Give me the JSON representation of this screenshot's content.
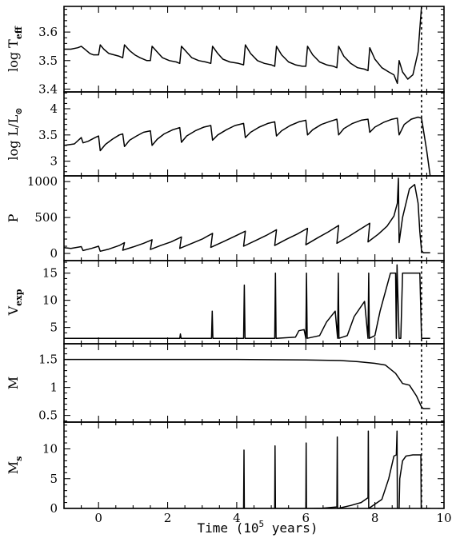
{
  "xaxis": {
    "label_prefix": "Time (10",
    "label_exp": "5",
    "label_suffix": " years)",
    "xlim": [
      -1.0,
      10.0
    ],
    "ticks": [
      0,
      2,
      4,
      6,
      8,
      10
    ],
    "tick_labels": [
      "0",
      "2",
      "4",
      "6",
      "8",
      "10"
    ]
  },
  "vertical_marker_x": 9.35,
  "chart_data": [
    {
      "id": "teff",
      "type": "line",
      "ylabel": {
        "text": "log T",
        "sub": "eff"
      },
      "ylim": [
        3.39,
        3.69
      ],
      "yticks": [
        3.4,
        3.5,
        3.6
      ],
      "ytick_labels": [
        "3.4",
        "3.5",
        "3.6"
      ],
      "x": [
        -1.0,
        -0.8,
        -0.6,
        -0.5,
        -0.45,
        -0.3,
        -0.25,
        -0.15,
        0.0,
        0.05,
        0.15,
        0.3,
        0.45,
        0.6,
        0.7,
        0.75,
        0.9,
        1.05,
        1.2,
        1.4,
        1.5,
        1.55,
        1.7,
        1.85,
        2.05,
        2.25,
        2.35,
        2.4,
        2.55,
        2.7,
        2.9,
        3.1,
        3.25,
        3.3,
        3.45,
        3.6,
        3.8,
        4.05,
        4.2,
        4.25,
        4.4,
        4.6,
        4.8,
        5.0,
        5.1,
        5.15,
        5.3,
        5.5,
        5.7,
        5.9,
        6.0,
        6.05,
        6.2,
        6.4,
        6.6,
        6.8,
        6.9,
        6.95,
        7.1,
        7.3,
        7.5,
        7.7,
        7.8,
        7.85,
        8.0,
        8.2,
        8.4,
        8.55,
        8.65,
        8.7,
        8.8,
        8.95,
        9.1,
        9.25,
        9.35
      ],
      "y": [
        3.54,
        3.54,
        3.545,
        3.55,
        3.545,
        3.53,
        3.525,
        3.52,
        3.52,
        3.555,
        3.54,
        3.525,
        3.52,
        3.515,
        3.51,
        3.555,
        3.535,
        3.52,
        3.51,
        3.5,
        3.5,
        3.55,
        3.53,
        3.51,
        3.5,
        3.495,
        3.49,
        3.55,
        3.53,
        3.51,
        3.5,
        3.495,
        3.49,
        3.55,
        3.525,
        3.505,
        3.495,
        3.49,
        3.485,
        3.555,
        3.525,
        3.5,
        3.49,
        3.485,
        3.48,
        3.55,
        3.52,
        3.495,
        3.485,
        3.48,
        3.48,
        3.55,
        3.52,
        3.495,
        3.485,
        3.48,
        3.475,
        3.55,
        3.515,
        3.49,
        3.475,
        3.47,
        3.465,
        3.545,
        3.505,
        3.475,
        3.46,
        3.45,
        3.42,
        3.5,
        3.46,
        3.435,
        3.45,
        3.53,
        3.69
      ]
    },
    {
      "id": "lum",
      "type": "line",
      "ylabel": {
        "text": "log L/L",
        "sub": "⊙"
      },
      "ylim": [
        2.72,
        4.32
      ],
      "yticks": [
        3.0,
        3.5,
        4.0
      ],
      "ytick_labels": [
        "3",
        "3.5",
        "4"
      ],
      "x": [
        -1.0,
        -0.7,
        -0.5,
        -0.45,
        -0.3,
        -0.1,
        0.0,
        0.05,
        0.2,
        0.4,
        0.6,
        0.7,
        0.75,
        0.9,
        1.1,
        1.3,
        1.5,
        1.55,
        1.7,
        1.9,
        2.15,
        2.35,
        2.4,
        2.55,
        2.8,
        3.05,
        3.25,
        3.3,
        3.45,
        3.7,
        3.95,
        4.2,
        4.25,
        4.4,
        4.65,
        4.9,
        5.1,
        5.15,
        5.3,
        5.55,
        5.8,
        6.0,
        6.05,
        6.2,
        6.45,
        6.7,
        6.9,
        6.95,
        7.1,
        7.35,
        7.6,
        7.8,
        7.85,
        8.0,
        8.25,
        8.5,
        8.65,
        8.7,
        8.85,
        9.05,
        9.25,
        9.35,
        9.5,
        9.6
      ],
      "y": [
        3.3,
        3.33,
        3.45,
        3.35,
        3.38,
        3.45,
        3.48,
        3.2,
        3.32,
        3.42,
        3.5,
        3.52,
        3.28,
        3.4,
        3.48,
        3.55,
        3.58,
        3.3,
        3.42,
        3.52,
        3.6,
        3.64,
        3.36,
        3.48,
        3.58,
        3.65,
        3.68,
        3.4,
        3.5,
        3.6,
        3.68,
        3.72,
        3.45,
        3.55,
        3.65,
        3.72,
        3.75,
        3.48,
        3.58,
        3.68,
        3.75,
        3.78,
        3.5,
        3.6,
        3.7,
        3.76,
        3.8,
        3.5,
        3.62,
        3.72,
        3.78,
        3.8,
        3.55,
        3.65,
        3.74,
        3.8,
        3.82,
        3.5,
        3.7,
        3.8,
        3.84,
        3.82,
        3.2,
        2.72
      ]
    },
    {
      "id": "period",
      "type": "line",
      "ylabel": {
        "text": "P",
        "sub": ""
      },
      "ylim": [
        -100,
        1080
      ],
      "yticks": [
        0,
        500,
        1000
      ],
      "ytick_labels": [
        "0",
        "500",
        "1000"
      ],
      "x": [
        -1.0,
        -0.8,
        -0.5,
        -0.45,
        -0.2,
        0.0,
        0.05,
        0.3,
        0.6,
        0.75,
        0.7,
        1.0,
        1.3,
        1.55,
        1.5,
        1.8,
        2.1,
        2.4,
        2.35,
        2.7,
        3.0,
        3.3,
        3.25,
        3.6,
        3.9,
        4.25,
        4.2,
        4.55,
        4.85,
        5.15,
        5.1,
        5.45,
        5.75,
        6.05,
        6.0,
        6.35,
        6.65,
        6.95,
        6.9,
        7.25,
        7.55,
        7.85,
        7.8,
        8.1,
        8.35,
        8.55,
        8.65,
        8.68,
        8.7,
        8.8,
        9.0,
        9.15,
        9.25,
        9.3,
        9.35,
        9.4,
        9.6
      ],
      "y": [
        80,
        70,
        95,
        40,
        70,
        100,
        30,
        60,
        110,
        150,
        45,
        90,
        140,
        190,
        55,
        110,
        160,
        230,
        70,
        140,
        200,
        280,
        85,
        160,
        230,
        310,
        100,
        180,
        250,
        330,
        110,
        200,
        270,
        350,
        120,
        220,
        300,
        390,
        140,
        240,
        330,
        420,
        160,
        270,
        380,
        520,
        700,
        1050,
        150,
        500,
        900,
        960,
        700,
        300,
        40,
        10,
        10
      ]
    },
    {
      "id": "vexp",
      "type": "line",
      "ylabel": {
        "text": "V",
        "sub": "exp"
      },
      "ylim": [
        2.0,
        17.3
      ],
      "yticks": [
        5,
        10,
        15
      ],
      "ytick_labels": [
        "5",
        "10",
        "15"
      ],
      "x": [
        -1.0,
        2.35,
        2.37,
        2.39,
        3.27,
        3.29,
        3.31,
        4.2,
        4.22,
        4.24,
        5.1,
        5.12,
        5.14,
        5.7,
        5.8,
        5.95,
        6.0,
        6.02,
        6.04,
        6.4,
        6.6,
        6.85,
        6.92,
        6.94,
        6.96,
        7.2,
        7.4,
        7.7,
        7.8,
        7.82,
        7.84,
        8.0,
        8.15,
        8.45,
        8.6,
        8.62,
        8.64,
        8.7,
        8.75,
        8.8,
        8.85,
        9.3,
        9.35,
        9.6
      ],
      "y": [
        3.0,
        3.0,
        3.8,
        3.0,
        3.0,
        8.0,
        3.0,
        3.0,
        12.8,
        3.0,
        3.0,
        15.0,
        3.0,
        3.2,
        4.4,
        4.6,
        3.0,
        15.0,
        3.0,
        3.5,
        6.0,
        8.0,
        3.0,
        15.0,
        3.0,
        3.5,
        7.0,
        9.8,
        3.0,
        15.0,
        3.0,
        3.5,
        8.0,
        15.0,
        15.0,
        3.0,
        16.5,
        3.0,
        3.0,
        15.0,
        15.0,
        15.0,
        3.0,
        3.0
      ]
    },
    {
      "id": "mass",
      "type": "line",
      "ylabel": {
        "text": "M",
        "sub": ""
      },
      "ylim": [
        0.38,
        1.78
      ],
      "yticks": [
        0.5,
        1.0,
        1.5
      ],
      "ytick_labels": [
        "0.5",
        "1",
        "1.5"
      ],
      "x": [
        -1.0,
        4.0,
        6.0,
        7.0,
        7.5,
        8.0,
        8.3,
        8.6,
        8.8,
        9.0,
        9.2,
        9.35,
        9.4,
        9.6
      ],
      "y": [
        1.5,
        1.5,
        1.49,
        1.48,
        1.46,
        1.43,
        1.4,
        1.25,
        1.07,
        1.04,
        0.85,
        0.65,
        0.62,
        0.62
      ]
    },
    {
      "id": "msh",
      "type": "line",
      "ylabel": {
        "text": "M",
        "sub": "s"
      },
      "ylim": [
        0.0,
        14.5
      ],
      "yticks": [
        0,
        5,
        10
      ],
      "ytick_labels": [
        "0",
        "5",
        "10"
      ],
      "x": [
        -1.0,
        4.2,
        4.21,
        4.22,
        5.1,
        5.11,
        5.12,
        6.0,
        6.01,
        6.02,
        6.5,
        6.8,
        6.9,
        6.91,
        6.92,
        7.3,
        7.6,
        7.8,
        7.81,
        7.82,
        8.2,
        8.4,
        8.55,
        8.62,
        8.64,
        8.65,
        8.7,
        8.72,
        8.8,
        8.9,
        9.1,
        9.3,
        9.33,
        9.34,
        9.6
      ],
      "y": [
        0.0,
        0.0,
        9.8,
        0.0,
        0.0,
        10.5,
        0.0,
        0.0,
        11.0,
        0.0,
        0.05,
        0.2,
        0.25,
        12.0,
        0.0,
        0.5,
        1.0,
        1.8,
        13.0,
        0.0,
        1.5,
        5.0,
        8.8,
        9.0,
        13.0,
        0.0,
        0.0,
        5.0,
        8.0,
        8.8,
        9.0,
        9.0,
        9.0,
        0.0,
        0.0
      ]
    }
  ]
}
